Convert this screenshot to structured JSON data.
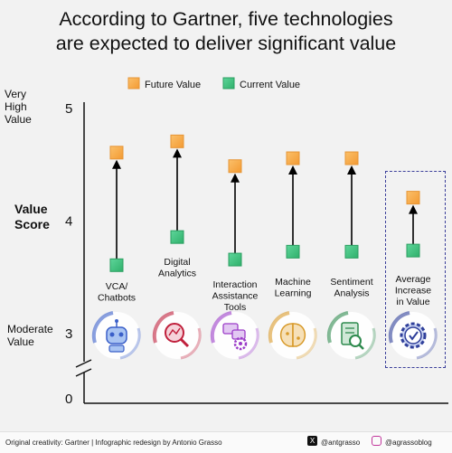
{
  "title": {
    "line1": "According to Gartner, five technologies",
    "line2": "are expected to deliver significant value"
  },
  "legend": {
    "future_label": "Future Value",
    "current_label": "Current Value"
  },
  "colors": {
    "future": "#f7a84a",
    "current": "#3ec27e",
    "arrow": "#000000",
    "highlight_box": "#3b3f9a"
  },
  "chart_data": {
    "type": "scatter",
    "ylabel": "Value Score",
    "ylim": [
      0,
      5
    ],
    "axis_break": true,
    "y_ticks": [
      {
        "value": 5,
        "label": "5",
        "side_label": "Very High Value"
      },
      {
        "value": 4,
        "label": "4",
        "side_label": ""
      },
      {
        "value": 3,
        "label": "3",
        "side_label": "Moderate Value"
      },
      {
        "value": 0,
        "label": "0",
        "side_label": ""
      }
    ],
    "categories": [
      "VCA/ Chatbots",
      "Digital Analytics",
      "Interaction Assistance Tools",
      "Machine Learning",
      "Sentiment Analysis",
      "Average Increase in Value"
    ],
    "series": [
      {
        "name": "Current Value",
        "values": [
          3.6,
          3.85,
          3.65,
          3.72,
          3.72,
          3.73
        ]
      },
      {
        "name": "Future Value",
        "values": [
          4.6,
          4.7,
          4.48,
          4.55,
          4.55,
          4.2
        ]
      }
    ],
    "highlighted_category": "Average Increase in Value"
  },
  "category_icons": [
    {
      "name": "chatbot-icon",
      "color": "#3a5fc9"
    },
    {
      "name": "magnifier-chart-icon",
      "color": "#c0203c"
    },
    {
      "name": "chat-gear-icon",
      "color": "#9b3cc8"
    },
    {
      "name": "brain-circuit-icon",
      "color": "#d89a2a"
    },
    {
      "name": "document-search-icon",
      "color": "#2e8a4e"
    },
    {
      "name": "gear-check-icon",
      "color": "#2f3f9a"
    }
  ],
  "footer": {
    "left": "Original creativity: Gartner  |  Infographic redesign by Antonio Grasso",
    "x_handle": "@antgrasso",
    "ig_handle": "@agrassoblog"
  }
}
